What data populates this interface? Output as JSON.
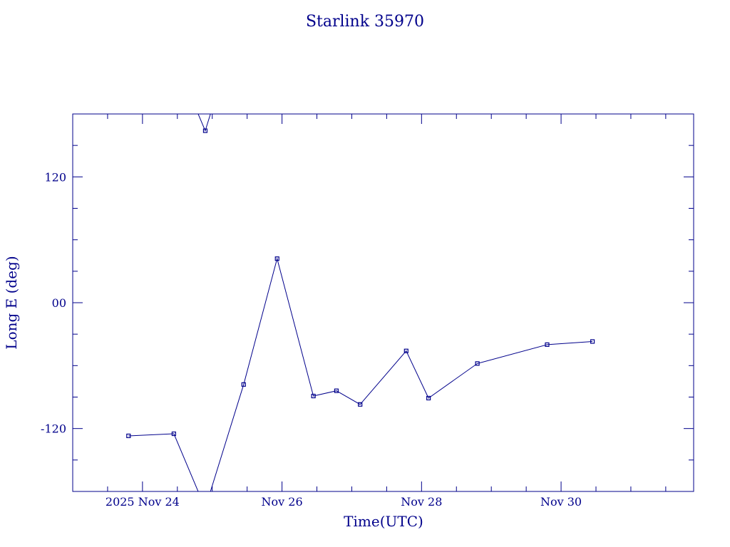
{
  "chart_data": {
    "type": "line",
    "title": "Starlink 35970",
    "xlabel": "Time(UTC)",
    "ylabel": "Long E (deg)",
    "x_unit": "day (UTC, November 2025)",
    "xlim": [
      "2025-11-23.0",
      "2025-12-01.9"
    ],
    "ylim": [
      -180,
      180
    ],
    "x_ticks": [
      {
        "value": 24,
        "label": "2025 Nov 24"
      },
      {
        "value": 26,
        "label": "Nov 26"
      },
      {
        "value": 28,
        "label": "Nov 28"
      },
      {
        "value": 30,
        "label": "Nov 30"
      }
    ],
    "y_ticks": [
      {
        "value": 120,
        "label": "120"
      },
      {
        "value": 0,
        "label": "00"
      },
      {
        "value": -120,
        "label": "-120"
      }
    ],
    "series": [
      {
        "x": [
          23.8,
          24.45,
          24.9,
          25.45,
          25.93,
          26.45,
          26.78,
          27.12,
          27.78,
          28.1,
          28.8,
          29.8,
          30.45
        ],
        "y": [
          -127,
          -125,
          164,
          -78,
          42,
          -89,
          -84,
          -97,
          -46,
          -91,
          -58,
          -40,
          -37
        ]
      }
    ],
    "grid": false,
    "legend": "none",
    "colors": {
      "ink": "#00008B"
    }
  }
}
